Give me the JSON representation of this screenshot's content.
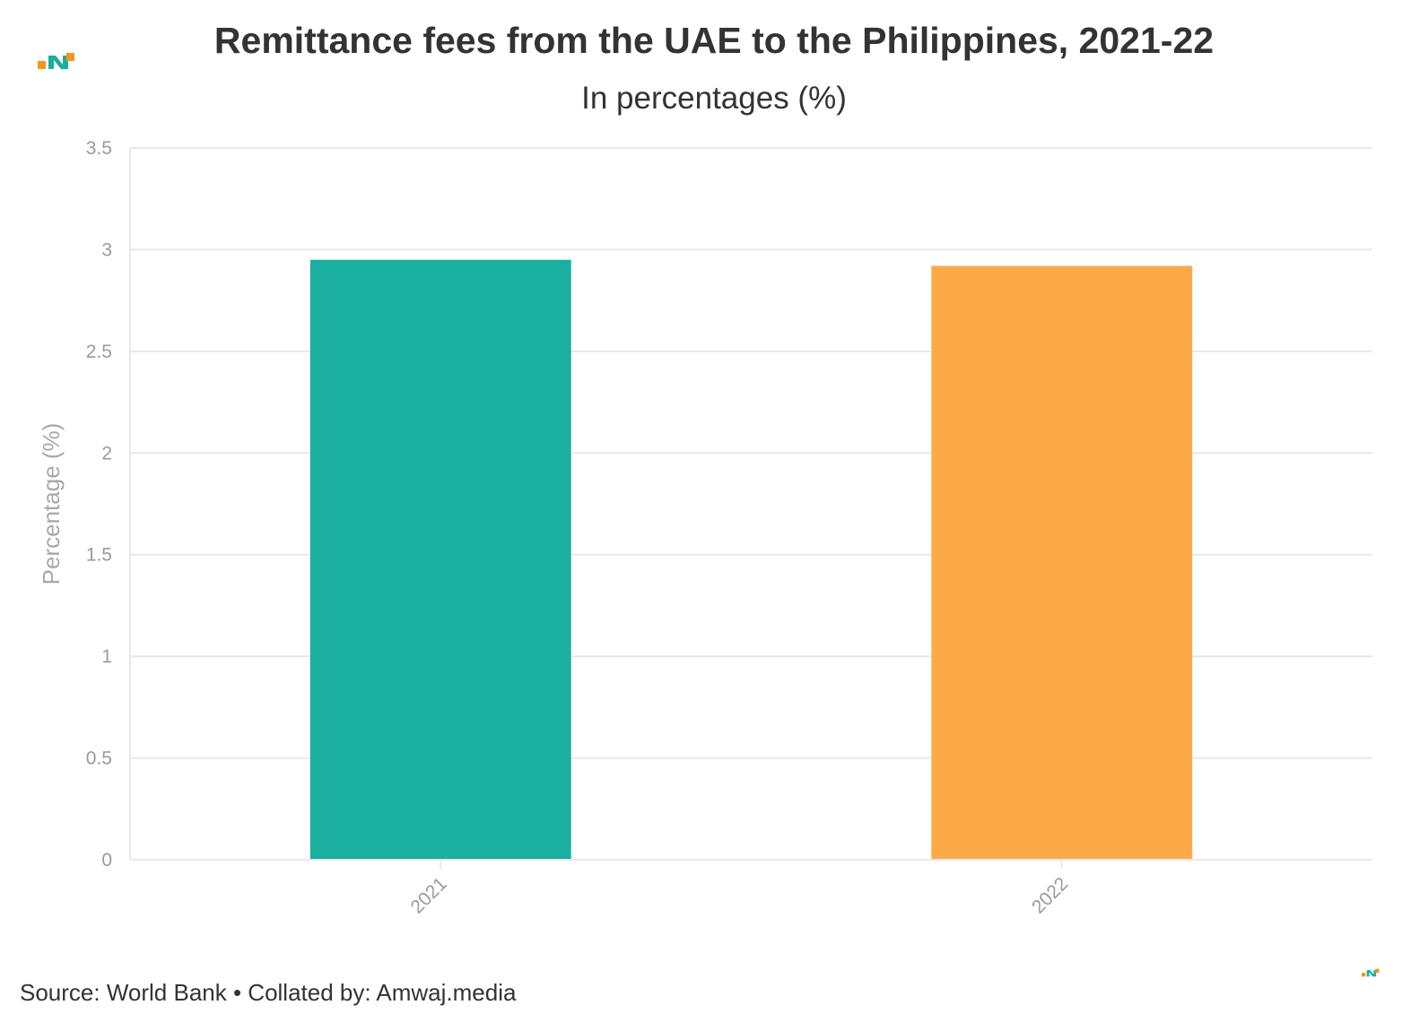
{
  "header": {
    "title": "Remittance fees from the UAE to the Philippines, 2021-22",
    "subtitle": "In percentages (%)"
  },
  "footer": {
    "source": "Source: World Bank • Collated by: Amwaj.media"
  },
  "colors": {
    "bar_2021": "#1aaf9e",
    "bar_2022": "#fea947",
    "logo_orange": "#f7941d",
    "logo_teal": "#1aaf9e",
    "grid": "#e8e8e8"
  },
  "icons": {
    "logo_top": "amwaj-logo-icon",
    "logo_bottom": "amwaj-logo-small-icon"
  },
  "chart_data": {
    "type": "bar",
    "categories": [
      "2021",
      "2022"
    ],
    "values": [
      2.95,
      2.92
    ],
    "title": "Remittance fees from the UAE to the Philippines, 2021-22",
    "subtitle": "In percentages (%)",
    "xlabel": "",
    "ylabel": "Percentage (%)",
    "ylim": [
      0,
      3.5
    ],
    "yticks": [
      "0",
      "0.5",
      "1",
      "1.5",
      "2",
      "2.5",
      "3",
      "3.5"
    ],
    "grid": true,
    "legend": "none"
  }
}
